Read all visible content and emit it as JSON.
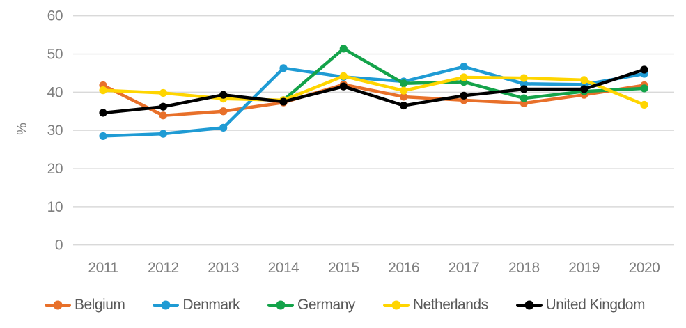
{
  "chart_data": {
    "type": "line",
    "title": "",
    "xlabel": "",
    "ylabel": "%",
    "ylim": [
      0,
      60
    ],
    "ytick_step": 10,
    "yticks": [
      "0",
      "10",
      "20",
      "30",
      "40",
      "50",
      "60"
    ],
    "grid": true,
    "legend_position": "bottom",
    "x": [
      "2011",
      "2012",
      "2013",
      "2014",
      "2015",
      "2016",
      "2017",
      "2018",
      "2019",
      "2020"
    ],
    "series": [
      {
        "name": "Belgium",
        "color": "#e8702a",
        "values": [
          41.8,
          33.9,
          35.0,
          37.3,
          42.0,
          38.8,
          37.9,
          37.1,
          39.3,
          41.8
        ]
      },
      {
        "name": "Denmark",
        "color": "#1f9bd4",
        "values": [
          28.5,
          29.1,
          30.7,
          46.3,
          44.0,
          42.8,
          46.7,
          42.2,
          42.0,
          44.8
        ]
      },
      {
        "name": "Germany",
        "color": "#14a34a",
        "values": [
          null,
          null,
          null,
          37.9,
          51.4,
          42.3,
          42.7,
          38.4,
          40.2,
          41.0
        ]
      },
      {
        "name": "Netherlands",
        "color": "#ffd500",
        "values": [
          40.5,
          39.8,
          38.3,
          37.9,
          44.2,
          40.4,
          43.9,
          43.7,
          43.2,
          36.7
        ]
      },
      {
        "name": "United Kingdom",
        "color": "#000000",
        "values": [
          34.6,
          36.2,
          39.3,
          37.5,
          41.5,
          36.5,
          39.1,
          40.8,
          40.8,
          45.9
        ]
      }
    ],
    "style": {
      "grid_color": "#d9d9d9",
      "tick_label_color": "#7f7f7f",
      "legend_text_color": "#595959",
      "background": "#ffffff"
    }
  }
}
